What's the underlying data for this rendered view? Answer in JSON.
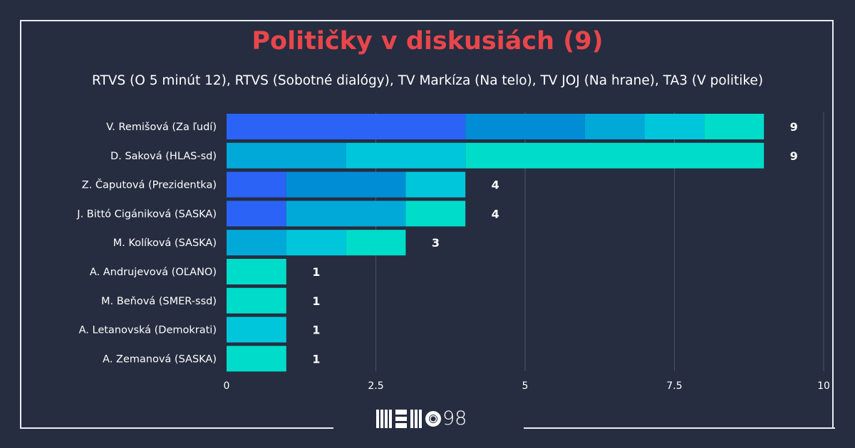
{
  "chart_data": {
    "type": "bar",
    "orientation": "horizontal",
    "stacked": true,
    "title": "Političky v diskusiách (9)",
    "subtitle": "RTVS (O 5 minút 12), RTVS (Sobotné dialógy), TV Markíza (Na telo), TV JOJ (Na hrane), TA3 (V politike)",
    "categories": [
      "V. Remišová (Za ľudí)",
      "D. Saková (HLAS-sd)",
      "Z. Čaputová (Prezidentka)",
      "J. Bittó Cigániková (SASKA)",
      "M. Kolíková (SASKA)",
      "A. Andrujevová (OĽANO)",
      "M. Beňová (SMER-ssd)",
      "A. Letanovská (Demokrati)",
      "A. Zemanová (SASKA)"
    ],
    "series": [
      {
        "name": "RTVS (O 5 minút 12)",
        "color": "#2b63f6",
        "values": [
          4,
          0,
          1,
          1,
          0,
          0,
          0,
          0,
          0
        ]
      },
      {
        "name": "RTVS (Sobotné dialógy)",
        "color": "#018dd6",
        "values": [
          2,
          0,
          2,
          0,
          0,
          0,
          0,
          0,
          0
        ]
      },
      {
        "name": "TV Markíza (Na telo)",
        "color": "#01a9d9",
        "values": [
          1,
          2,
          0,
          2,
          1,
          0,
          0,
          0,
          0
        ]
      },
      {
        "name": "TV JOJ (Na hrane)",
        "color": "#00c6dc",
        "values": [
          1,
          2,
          1,
          0,
          1,
          0,
          0,
          1,
          0
        ]
      },
      {
        "name": "TA3 (V politike)",
        "color": "#00dcca",
        "values": [
          1,
          5,
          0,
          1,
          1,
          1,
          1,
          0,
          1
        ]
      }
    ],
    "totals": [
      "9",
      "9",
      "4",
      "4",
      "3",
      "1",
      "1",
      "1",
      "1"
    ],
    "xlim": [
      0,
      10
    ],
    "xticks": [
      "0",
      "2.5",
      "5",
      "7.5",
      "10"
    ],
    "xtick_values": [
      0,
      2.5,
      5,
      7.5,
      10
    ],
    "grid": true,
    "legend": "none"
  },
  "logo": {
    "text": "MEMO98"
  }
}
